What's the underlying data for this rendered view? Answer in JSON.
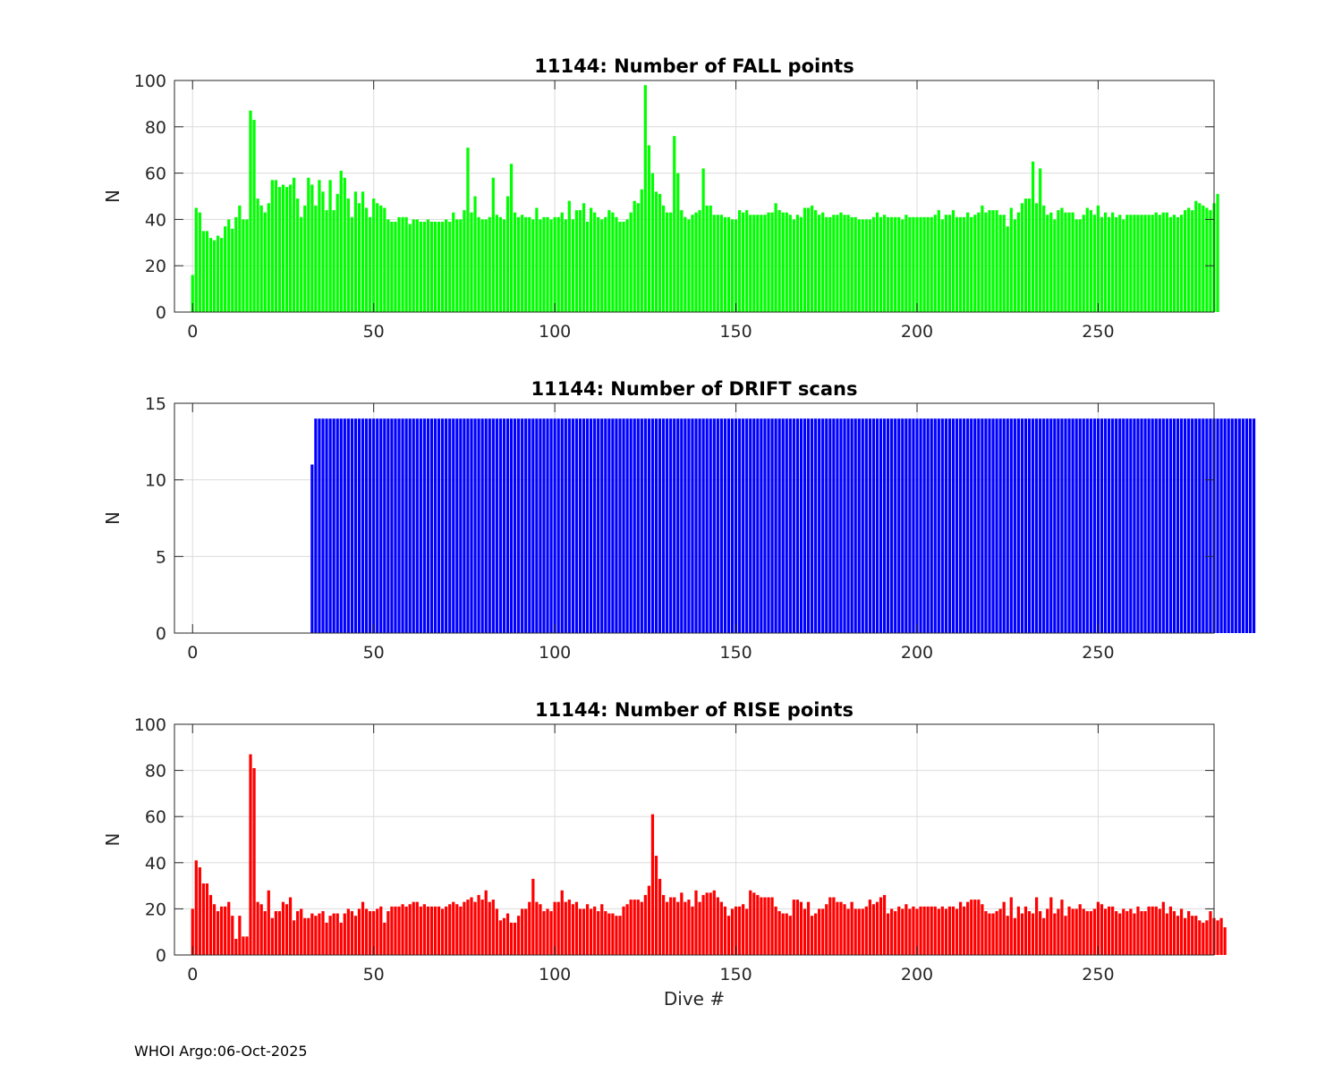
{
  "footer": "WHOI Argo:06-Oct-2025",
  "chart_data": [
    {
      "type": "bar",
      "title": "11144: Number of FALL points",
      "xlabel": "",
      "ylabel": "N",
      "xlim": [
        -5,
        282
      ],
      "ylim": [
        0,
        100
      ],
      "xticks": [
        0,
        50,
        100,
        150,
        200,
        250
      ],
      "yticks": [
        0,
        20,
        40,
        60,
        80,
        100
      ],
      "grid": true,
      "color": "#00ff00",
      "x_start": 0,
      "values": [
        16,
        45,
        43,
        35,
        35,
        32,
        31,
        33,
        32,
        37,
        40,
        36,
        41,
        46,
        40,
        40,
        87,
        83,
        49,
        46,
        43,
        47,
        57,
        57,
        54,
        55,
        54,
        55,
        58,
        49,
        41,
        46,
        58,
        55,
        46,
        57,
        52,
        44,
        57,
        44,
        51,
        61,
        58,
        49,
        41,
        52,
        47,
        52,
        45,
        41,
        49,
        47,
        46,
        45,
        40,
        39,
        39,
        41,
        41,
        41,
        38,
        40,
        40,
        39,
        39,
        40,
        39,
        39,
        39,
        39,
        40,
        39,
        43,
        40,
        40,
        44,
        71,
        43,
        50,
        41,
        40,
        40,
        41,
        58,
        42,
        41,
        40,
        50,
        64,
        43,
        41,
        42,
        41,
        41,
        40,
        45,
        40,
        41,
        41,
        40,
        41,
        41,
        43,
        40,
        48,
        40,
        44,
        44,
        47,
        39,
        45,
        43,
        41,
        40,
        41,
        44,
        43,
        41,
        39,
        39,
        40,
        43,
        48,
        47,
        53,
        98,
        72,
        60,
        52,
        51,
        46,
        43,
        43,
        76,
        60,
        44,
        41,
        40,
        42,
        43,
        44,
        62,
        46,
        46,
        42,
        42,
        42,
        41,
        41,
        40,
        40,
        44,
        43,
        44,
        42,
        42,
        42,
        42,
        42,
        43,
        43,
        47,
        44,
        43,
        43,
        42,
        40,
        42,
        41,
        45,
        45,
        46,
        44,
        42,
        43,
        41,
        41,
        42,
        42,
        43,
        42,
        42,
        41,
        41,
        40,
        40,
        40,
        40,
        41,
        43,
        41,
        42,
        41,
        41,
        41,
        41,
        40,
        42,
        41,
        41,
        41,
        41,
        41,
        41,
        41,
        42,
        44,
        40,
        42,
        42,
        44,
        41,
        41,
        41,
        43,
        41,
        42,
        43,
        46,
        43,
        44,
        44,
        44,
        42,
        42,
        37,
        45,
        40,
        43,
        47,
        49,
        49,
        65,
        47,
        62,
        46,
        42,
        43,
        40,
        44,
        45,
        43,
        43,
        43,
        40,
        40,
        42,
        45,
        44,
        42,
        46,
        41,
        43,
        41,
        43,
        41,
        42,
        40,
        42,
        42,
        42,
        42,
        42,
        42,
        42,
        42,
        43,
        42,
        43,
        43,
        41,
        42,
        41,
        42,
        44,
        45,
        44,
        48,
        47,
        46,
        45,
        44,
        47,
        51
      ]
    },
    {
      "type": "bar",
      "title": "11144: Number of DRIFT scans",
      "xlabel": "",
      "ylabel": "N",
      "xlim": [
        -5,
        282
      ],
      "ylim": [
        0,
        15
      ],
      "xticks": [
        0,
        50,
        100,
        150,
        200,
        250
      ],
      "yticks": [
        0,
        5,
        10,
        15
      ],
      "grid": true,
      "color": "#0000ff",
      "x_start": 0,
      "values": [
        0,
        0,
        0,
        0,
        0,
        0,
        0,
        0,
        0,
        0,
        0,
        0,
        0,
        0,
        0,
        0,
        0,
        0,
        0,
        0,
        0,
        0,
        0,
        0,
        0,
        0,
        0,
        0,
        0,
        0,
        0,
        0,
        0,
        11,
        14,
        14,
        14,
        14,
        14,
        14,
        14,
        14,
        14,
        14,
        14,
        14,
        14,
        14,
        14,
        14,
        14,
        14,
        14,
        14,
        14,
        14,
        14,
        14,
        14,
        14,
        14,
        14,
        14,
        14,
        14,
        14,
        14,
        14,
        14,
        14,
        14,
        14,
        14,
        14,
        14,
        14,
        14,
        14,
        14,
        14,
        14,
        14,
        14,
        14,
        14,
        14,
        14,
        14,
        14,
        14,
        14,
        14,
        14,
        14,
        14,
        14,
        14,
        14,
        14,
        14,
        14,
        14,
        14,
        14,
        14,
        14,
        14,
        14,
        14,
        14,
        14,
        14,
        14,
        14,
        14,
        14,
        14,
        14,
        14,
        14,
        14,
        14,
        14,
        14,
        14,
        14,
        14,
        14,
        14,
        14,
        14,
        14,
        14,
        14,
        14,
        14,
        14,
        14,
        14,
        14,
        14,
        14,
        14,
        14,
        14,
        14,
        14,
        14,
        14,
        14,
        14,
        14,
        14,
        14,
        14,
        14,
        14,
        14,
        14,
        14,
        14,
        14,
        14,
        14,
        14,
        14,
        14,
        14,
        14,
        14,
        14,
        14,
        14,
        14,
        14,
        14,
        14,
        14,
        14,
        14,
        14,
        14,
        14,
        14,
        14,
        14,
        14,
        14,
        14,
        14,
        14,
        14,
        14,
        14,
        14,
        14,
        14,
        14,
        14,
        14,
        14,
        14,
        14,
        14,
        14,
        14,
        14,
        14,
        14,
        14,
        14,
        14,
        14,
        14,
        14,
        14,
        14,
        14,
        14,
        14,
        14,
        14,
        14,
        14,
        14,
        14,
        14,
        14,
        14,
        14,
        14,
        14,
        14,
        14,
        14,
        14,
        14,
        14,
        14,
        14,
        14,
        14,
        14,
        14,
        14,
        14,
        14,
        14,
        14,
        14,
        14,
        14,
        14,
        14,
        14,
        14,
        14,
        14,
        14,
        14,
        14,
        14,
        14,
        14,
        14,
        14,
        14,
        14,
        14,
        14,
        14,
        14,
        14,
        14,
        14,
        14,
        14,
        14,
        14,
        14,
        14,
        14,
        14,
        14,
        14,
        14,
        14,
        14,
        14,
        14,
        14,
        14,
        14,
        14
      ]
    },
    {
      "type": "bar",
      "title": "11144: Number of RISE points",
      "xlabel": "Dive #",
      "ylabel": "N",
      "xlim": [
        -5,
        282
      ],
      "ylim": [
        0,
        100
      ],
      "xticks": [
        0,
        50,
        100,
        150,
        200,
        250
      ],
      "yticks": [
        0,
        20,
        40,
        60,
        80,
        100
      ],
      "grid": true,
      "color": "#ff0000",
      "x_start": 0,
      "values": [
        20,
        41,
        38,
        31,
        31,
        26,
        22,
        19,
        21,
        21,
        23,
        17,
        7,
        17,
        8,
        8,
        87,
        81,
        23,
        22,
        19,
        28,
        16,
        19,
        19,
        23,
        22,
        25,
        15,
        19,
        20,
        16,
        16,
        18,
        17,
        18,
        19,
        14,
        17,
        18,
        18,
        14,
        18,
        20,
        19,
        17,
        20,
        23,
        20,
        19,
        19,
        20,
        21,
        14,
        19,
        21,
        21,
        21,
        22,
        21,
        22,
        23,
        23,
        21,
        22,
        21,
        21,
        21,
        21,
        20,
        21,
        22,
        23,
        22,
        21,
        23,
        24,
        25,
        23,
        26,
        24,
        28,
        23,
        24,
        20,
        15,
        16,
        18,
        14,
        14,
        17,
        20,
        20,
        23,
        33,
        23,
        22,
        19,
        20,
        19,
        23,
        23,
        28,
        23,
        24,
        22,
        23,
        20,
        20,
        22,
        20,
        21,
        19,
        22,
        19,
        18,
        18,
        17,
        17,
        21,
        22,
        24,
        24,
        24,
        23,
        26,
        30,
        61,
        43,
        33,
        26,
        23,
        25,
        25,
        23,
        27,
        23,
        24,
        21,
        28,
        23,
        26,
        27,
        27,
        28,
        25,
        23,
        21,
        17,
        20,
        21,
        21,
        22,
        20,
        28,
        27,
        26,
        25,
        25,
        25,
        25,
        21,
        19,
        18,
        18,
        17,
        24,
        24,
        23,
        20,
        23,
        17,
        18,
        20,
        20,
        22,
        25,
        25,
        23,
        23,
        22,
        20,
        23,
        20,
        20,
        20,
        21,
        24,
        22,
        23,
        25,
        26,
        18,
        20,
        19,
        21,
        20,
        22,
        20,
        21,
        20,
        21,
        21,
        21,
        21,
        21,
        20,
        21,
        20,
        21,
        21,
        20,
        23,
        21,
        23,
        24,
        24,
        24,
        22,
        19,
        18,
        18,
        19,
        20,
        23,
        17,
        25,
        16,
        21,
        18,
        21,
        19,
        18,
        25,
        19,
        16,
        20,
        25,
        18,
        20,
        24,
        17,
        21,
        20,
        20,
        22,
        20,
        19,
        19,
        20,
        23,
        22,
        20,
        21,
        21,
        19,
        18,
        20,
        19,
        20,
        18,
        21,
        19,
        19,
        21,
        21,
        21,
        20,
        23,
        18,
        21,
        19,
        17,
        20,
        16,
        19,
        17,
        17,
        15,
        14,
        15,
        19,
        16,
        15,
        16,
        12
      ]
    }
  ]
}
